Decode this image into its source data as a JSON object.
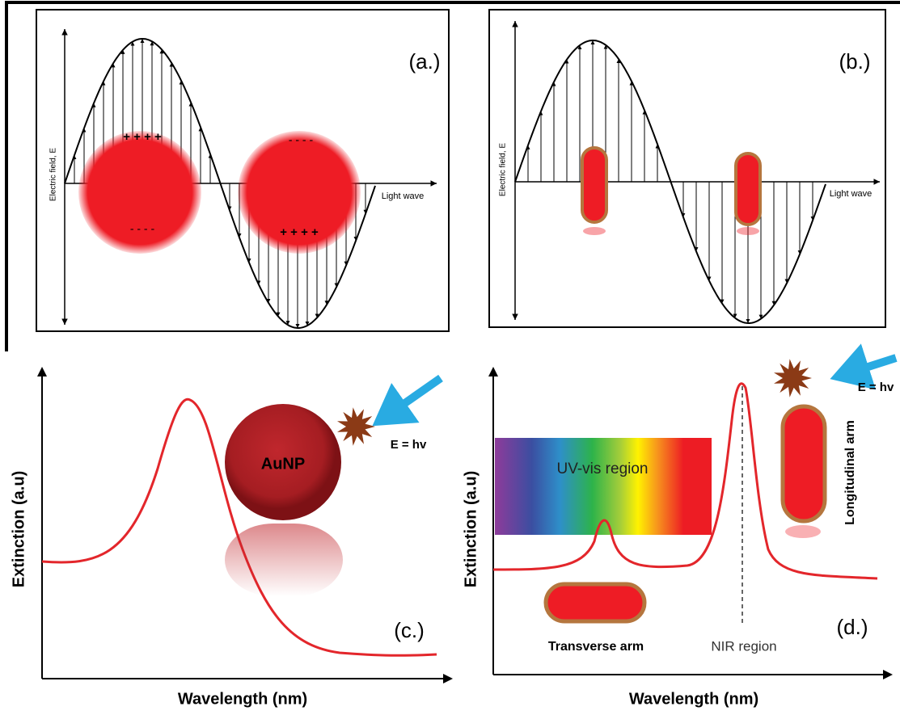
{
  "panels": [
    {
      "label": "(a.)",
      "y_axis_label": "Electric field, E",
      "x_axis_label": "Light wave",
      "charges": [
        "+ + + +",
        "- - - -",
        "- - - -",
        "+ + + +"
      ]
    },
    {
      "label": "(b.)",
      "y_axis_label": "Electric field, E",
      "x_axis_label": "Light wave"
    },
    {
      "label": "(c.)",
      "y_axis_label": "Extinction (a.u)",
      "x_axis_label": "Wavelength (nm)",
      "particle": "AuNP",
      "energy": "E = hv"
    },
    {
      "label": "(d.)",
      "y_axis_label": "Extinction (a.u)",
      "x_axis_label": "Wavelength (nm)",
      "regions": [
        "UV-vis region",
        "NIR region"
      ],
      "arms": [
        "Transverse arm",
        "Longitudinal arm"
      ],
      "energy": "E = hv"
    }
  ]
}
